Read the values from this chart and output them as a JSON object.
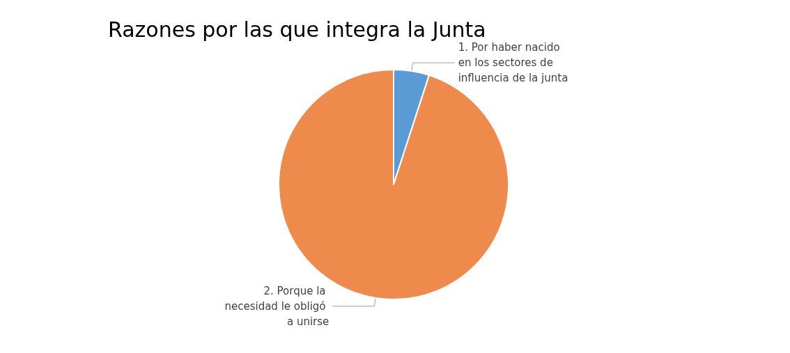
{
  "chart_data": {
    "type": "pie",
    "title": "Razones por las que integra la Junta",
    "categories": [
      "1. Por haber nacido en los sectores de influencia de la junta",
      "2. Porque la necesidad le obligó a unirse"
    ],
    "values": [
      5,
      95
    ],
    "colors": [
      "#5b9bd5",
      "#ed8a4c"
    ]
  }
}
